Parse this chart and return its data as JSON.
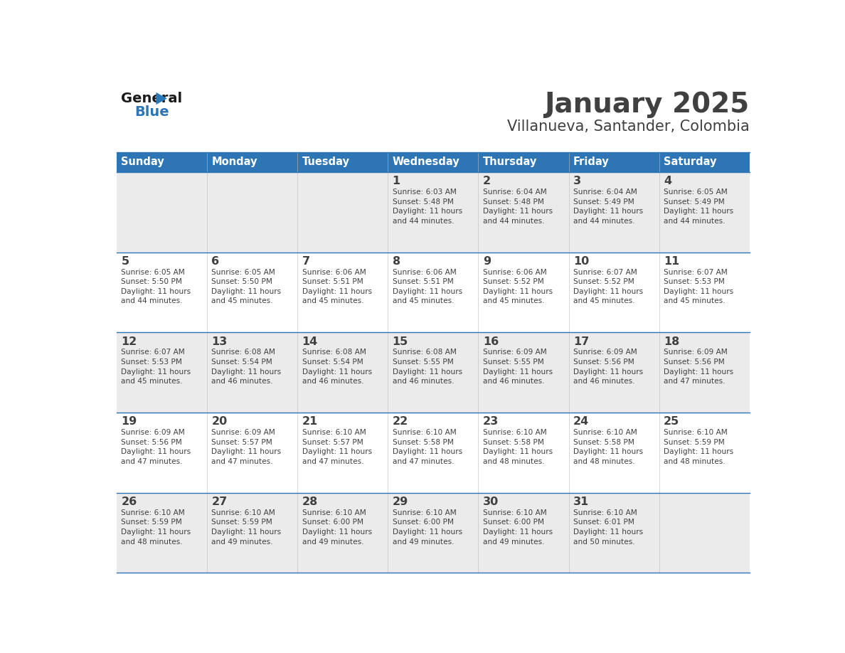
{
  "title": "January 2025",
  "subtitle": "Villanueva, Santander, Colombia",
  "header_bg": "#2E75B6",
  "header_text_color": "#FFFFFF",
  "cell_bg_odd": "#EBEBEB",
  "cell_bg_even": "#FFFFFF",
  "border_color": "#2E75B6",
  "text_color": "#404040",
  "days_of_week": [
    "Sunday",
    "Monday",
    "Tuesday",
    "Wednesday",
    "Thursday",
    "Friday",
    "Saturday"
  ],
  "calendar_data": [
    [
      {
        "day": "",
        "info": ""
      },
      {
        "day": "",
        "info": ""
      },
      {
        "day": "",
        "info": ""
      },
      {
        "day": "1",
        "info": "Sunrise: 6:03 AM\nSunset: 5:48 PM\nDaylight: 11 hours\nand 44 minutes."
      },
      {
        "day": "2",
        "info": "Sunrise: 6:04 AM\nSunset: 5:48 PM\nDaylight: 11 hours\nand 44 minutes."
      },
      {
        "day": "3",
        "info": "Sunrise: 6:04 AM\nSunset: 5:49 PM\nDaylight: 11 hours\nand 44 minutes."
      },
      {
        "day": "4",
        "info": "Sunrise: 6:05 AM\nSunset: 5:49 PM\nDaylight: 11 hours\nand 44 minutes."
      }
    ],
    [
      {
        "day": "5",
        "info": "Sunrise: 6:05 AM\nSunset: 5:50 PM\nDaylight: 11 hours\nand 44 minutes."
      },
      {
        "day": "6",
        "info": "Sunrise: 6:05 AM\nSunset: 5:50 PM\nDaylight: 11 hours\nand 45 minutes."
      },
      {
        "day": "7",
        "info": "Sunrise: 6:06 AM\nSunset: 5:51 PM\nDaylight: 11 hours\nand 45 minutes."
      },
      {
        "day": "8",
        "info": "Sunrise: 6:06 AM\nSunset: 5:51 PM\nDaylight: 11 hours\nand 45 minutes."
      },
      {
        "day": "9",
        "info": "Sunrise: 6:06 AM\nSunset: 5:52 PM\nDaylight: 11 hours\nand 45 minutes."
      },
      {
        "day": "10",
        "info": "Sunrise: 6:07 AM\nSunset: 5:52 PM\nDaylight: 11 hours\nand 45 minutes."
      },
      {
        "day": "11",
        "info": "Sunrise: 6:07 AM\nSunset: 5:53 PM\nDaylight: 11 hours\nand 45 minutes."
      }
    ],
    [
      {
        "day": "12",
        "info": "Sunrise: 6:07 AM\nSunset: 5:53 PM\nDaylight: 11 hours\nand 45 minutes."
      },
      {
        "day": "13",
        "info": "Sunrise: 6:08 AM\nSunset: 5:54 PM\nDaylight: 11 hours\nand 46 minutes."
      },
      {
        "day": "14",
        "info": "Sunrise: 6:08 AM\nSunset: 5:54 PM\nDaylight: 11 hours\nand 46 minutes."
      },
      {
        "day": "15",
        "info": "Sunrise: 6:08 AM\nSunset: 5:55 PM\nDaylight: 11 hours\nand 46 minutes."
      },
      {
        "day": "16",
        "info": "Sunrise: 6:09 AM\nSunset: 5:55 PM\nDaylight: 11 hours\nand 46 minutes."
      },
      {
        "day": "17",
        "info": "Sunrise: 6:09 AM\nSunset: 5:56 PM\nDaylight: 11 hours\nand 46 minutes."
      },
      {
        "day": "18",
        "info": "Sunrise: 6:09 AM\nSunset: 5:56 PM\nDaylight: 11 hours\nand 47 minutes."
      }
    ],
    [
      {
        "day": "19",
        "info": "Sunrise: 6:09 AM\nSunset: 5:56 PM\nDaylight: 11 hours\nand 47 minutes."
      },
      {
        "day": "20",
        "info": "Sunrise: 6:09 AM\nSunset: 5:57 PM\nDaylight: 11 hours\nand 47 minutes."
      },
      {
        "day": "21",
        "info": "Sunrise: 6:10 AM\nSunset: 5:57 PM\nDaylight: 11 hours\nand 47 minutes."
      },
      {
        "day": "22",
        "info": "Sunrise: 6:10 AM\nSunset: 5:58 PM\nDaylight: 11 hours\nand 47 minutes."
      },
      {
        "day": "23",
        "info": "Sunrise: 6:10 AM\nSunset: 5:58 PM\nDaylight: 11 hours\nand 48 minutes."
      },
      {
        "day": "24",
        "info": "Sunrise: 6:10 AM\nSunset: 5:58 PM\nDaylight: 11 hours\nand 48 minutes."
      },
      {
        "day": "25",
        "info": "Sunrise: 6:10 AM\nSunset: 5:59 PM\nDaylight: 11 hours\nand 48 minutes."
      }
    ],
    [
      {
        "day": "26",
        "info": "Sunrise: 6:10 AM\nSunset: 5:59 PM\nDaylight: 11 hours\nand 48 minutes."
      },
      {
        "day": "27",
        "info": "Sunrise: 6:10 AM\nSunset: 5:59 PM\nDaylight: 11 hours\nand 49 minutes."
      },
      {
        "day": "28",
        "info": "Sunrise: 6:10 AM\nSunset: 6:00 PM\nDaylight: 11 hours\nand 49 minutes."
      },
      {
        "day": "29",
        "info": "Sunrise: 6:10 AM\nSunset: 6:00 PM\nDaylight: 11 hours\nand 49 minutes."
      },
      {
        "day": "30",
        "info": "Sunrise: 6:10 AM\nSunset: 6:00 PM\nDaylight: 11 hours\nand 49 minutes."
      },
      {
        "day": "31",
        "info": "Sunrise: 6:10 AM\nSunset: 6:01 PM\nDaylight: 11 hours\nand 50 minutes."
      },
      {
        "day": "",
        "info": ""
      }
    ]
  ],
  "logo_general_color": "#1a1a1a",
  "logo_blue_color": "#2E75B6",
  "logo_triangle_color": "#2979B8"
}
